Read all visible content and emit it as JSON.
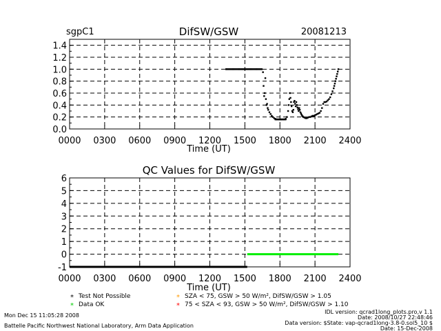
{
  "header": {
    "site": "sgpC1",
    "title": "DifSW/GSW",
    "date": "20081213"
  },
  "qc_title": "QC Values for DifSW/GSW",
  "legend": {
    "items": [
      {
        "symbol": "*",
        "text": "Test Not Possible",
        "color": "#000000"
      },
      {
        "symbol": "*",
        "text": "Data OK",
        "color": "#00cc00"
      },
      {
        "symbol": "*",
        "text": "SZA < 75, GSW > 50 W/m², DifSW/GSW > 1.05",
        "color": "#ff9900"
      },
      {
        "symbol": "*",
        "text": "75 < SZA < 93, GSW > 50 W/m², DifSW/GSW > 1.10",
        "color": "#ff0000"
      }
    ]
  },
  "footer": {
    "timestamp": "Mon Dec 15 11:05:28 2008",
    "lab": "Battelle Pacific Northwest National Laboratory, Arm Data Application",
    "idl_version": "IDL version: qcrad1long_plots.pro,v 1.1",
    "idl_date": "Date: 2008/10/27 22:48:46",
    "data_version": "Data version: $State: vap-qcrad1long-3.8-0.sol5_10 $",
    "data_date": "Date: 15-Dec-2008"
  },
  "chart_data": [
    {
      "type": "scatter",
      "title": "DifSW/GSW",
      "xlabel": "Time (UT)",
      "ylabel": "",
      "xlim": [
        0,
        2400
      ],
      "ylim": [
        0,
        1.5
      ],
      "x_ticks": [
        "0000",
        "0300",
        "0600",
        "0900",
        "1200",
        "1500",
        "1800",
        "2100",
        "2400"
      ],
      "y_ticks": [
        "0.0",
        "0.2",
        "0.4",
        "0.6",
        "0.8",
        "1.0",
        "1.2",
        "1.4"
      ],
      "grid": "dashed",
      "series": [
        {
          "color": "#000000",
          "x": [
            1340,
            1400,
            1450,
            1500,
            1550,
            1600,
            1645,
            1655,
            1660,
            1665,
            1670,
            1675,
            1680,
            1685,
            1690,
            1695,
            1700,
            1710,
            1720,
            1730,
            1740,
            1750,
            1760,
            1770,
            1790,
            1810,
            1830,
            1850,
            1860,
            1870,
            1875,
            1880,
            1885,
            1890,
            1895,
            1900,
            1905,
            1910,
            1915,
            1920,
            1925,
            1930,
            1935,
            1940,
            1945,
            1950,
            1955,
            1960,
            1965,
            1970,
            1975,
            1980,
            1985,
            1990,
            1995,
            2000,
            2010,
            2020,
            2030,
            2040,
            2050,
            2060,
            2070,
            2080,
            2090,
            2100,
            2110,
            2120,
            2130,
            2140,
            2150,
            2160,
            2170,
            2180,
            2190,
            2200,
            2210,
            2220,
            2230,
            2240,
            2250,
            2260,
            2265,
            2270,
            2275,
            2280,
            2285,
            2290,
            2295,
            2300
          ],
          "y": [
            1.0,
            1.0,
            1.0,
            1.0,
            1.0,
            1.0,
            1.0,
            0.95,
            0.72,
            0.55,
            0.6,
            0.85,
            0.5,
            0.4,
            0.42,
            0.35,
            0.32,
            0.28,
            0.25,
            0.22,
            0.2,
            0.18,
            0.17,
            0.16,
            0.16,
            0.16,
            0.16,
            0.17,
            0.2,
            0.3,
            0.4,
            0.5,
            0.6,
            0.52,
            0.45,
            0.38,
            0.3,
            0.28,
            0.32,
            0.45,
            0.47,
            0.42,
            0.38,
            0.45,
            0.4,
            0.36,
            0.33,
            0.3,
            0.35,
            0.32,
            0.28,
            0.26,
            0.24,
            0.22,
            0.21,
            0.2,
            0.19,
            0.18,
            0.18,
            0.19,
            0.2,
            0.2,
            0.21,
            0.22,
            0.22,
            0.23,
            0.24,
            0.25,
            0.26,
            0.27,
            0.3,
            0.35,
            0.42,
            0.45,
            0.45,
            0.46,
            0.48,
            0.5,
            0.53,
            0.58,
            0.63,
            0.68,
            0.72,
            0.76,
            0.8,
            0.84,
            0.88,
            0.92,
            0.96,
            1.0
          ]
        }
      ]
    },
    {
      "type": "scatter",
      "title": "QC Values for DifSW/GSW",
      "xlabel": "Time (UT)",
      "ylabel": "",
      "xlim": [
        0,
        2400
      ],
      "ylim": [
        -1,
        6
      ],
      "x_ticks": [
        "0000",
        "0300",
        "0600",
        "0900",
        "1200",
        "1500",
        "1800",
        "2100",
        "2400"
      ],
      "y_ticks": [
        "-1",
        "0",
        "1",
        "2",
        "3",
        "4",
        "5",
        "6"
      ],
      "grid": "dashed",
      "series": [
        {
          "color": "#000000",
          "x": [
            0,
            1520
          ],
          "y": [
            -1,
            -1
          ]
        },
        {
          "color": "#00ee00",
          "x": [
            1520,
            2300
          ],
          "y": [
            0,
            0
          ]
        }
      ]
    }
  ]
}
